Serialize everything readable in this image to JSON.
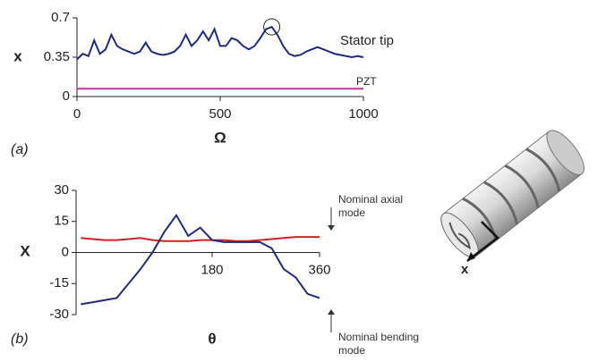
{
  "chart_data": [
    {
      "type": "line",
      "panel_label": "(a)",
      "x_label": "Ω",
      "y_label": "x",
      "xlim": [
        0,
        1000
      ],
      "xticks": [
        0,
        500,
        1000
      ],
      "ylim": [
        0,
        0.7
      ],
      "yticks": [
        0,
        0.35,
        0.7
      ],
      "x": [
        0,
        20,
        40,
        60,
        80,
        100,
        120,
        140,
        160,
        180,
        200,
        220,
        240,
        260,
        280,
        300,
        320,
        340,
        360,
        380,
        400,
        420,
        440,
        460,
        480,
        500,
        520,
        540,
        560,
        580,
        600,
        620,
        640,
        660,
        680,
        700,
        720,
        740,
        760,
        780,
        800,
        820,
        840,
        860,
        880,
        900,
        920,
        940,
        960,
        980,
        1000
      ],
      "series": [
        {
          "name": "Stator tip",
          "color": "#1f2a7a",
          "values": [
            0.33,
            0.38,
            0.36,
            0.5,
            0.38,
            0.42,
            0.55,
            0.45,
            0.42,
            0.4,
            0.38,
            0.4,
            0.48,
            0.4,
            0.38,
            0.37,
            0.38,
            0.4,
            0.45,
            0.55,
            0.45,
            0.5,
            0.58,
            0.5,
            0.6,
            0.45,
            0.45,
            0.52,
            0.5,
            0.45,
            0.42,
            0.45,
            0.52,
            0.6,
            0.62,
            0.55,
            0.45,
            0.38,
            0.36,
            0.37,
            0.4,
            0.42,
            0.44,
            0.42,
            0.4,
            0.38,
            0.37,
            0.36,
            0.35,
            0.36,
            0.35
          ]
        },
        {
          "name": "PZT",
          "color": "#c0379a",
          "values": [
            0.07,
            0.07,
            0.07,
            0.07,
            0.07,
            0.07,
            0.07,
            0.07,
            0.07,
            0.07,
            0.07,
            0.07,
            0.07,
            0.07,
            0.07,
            0.07,
            0.07,
            0.07,
            0.07,
            0.07,
            0.07,
            0.07,
            0.07,
            0.07,
            0.07,
            0.07,
            0.07,
            0.07,
            0.07,
            0.07,
            0.07,
            0.07,
            0.07,
            0.07,
            0.07,
            0.07,
            0.07,
            0.07,
            0.07,
            0.07,
            0.07,
            0.07,
            0.07,
            0.07,
            0.07,
            0.07,
            0.07,
            0.07,
            0.07,
            0.07,
            0.07
          ]
        }
      ],
      "highlight_index": 34
    },
    {
      "type": "line",
      "panel_label": "(b)",
      "x_label": "θ",
      "y_label": "X",
      "xlim": [
        -48,
        360
      ],
      "xticks": [
        180,
        360
      ],
      "ylim": [
        -30,
        30
      ],
      "yticks": [
        -30,
        -15,
        0,
        15,
        30
      ],
      "x": [
        -40,
        -20,
        0,
        20,
        40,
        60,
        80,
        100,
        120,
        140,
        160,
        180,
        200,
        220,
        240,
        260,
        280,
        300,
        320,
        340,
        360
      ],
      "series": [
        {
          "name": "Nominal axial mode",
          "color": "#d62020",
          "values": [
            7,
            6.5,
            6,
            6,
            6.5,
            7,
            6,
            5.5,
            5.5,
            5.5,
            6,
            6,
            6,
            5.5,
            5.5,
            6,
            6.5,
            7,
            7.5,
            7.5,
            7.5
          ]
        },
        {
          "name": "Nominal bending mode",
          "color": "#1f2a7a",
          "values": [
            -25,
            -24,
            -23,
            -22,
            -15,
            -8,
            0,
            10,
            18,
            8,
            12,
            6,
            5,
            5,
            5,
            5,
            2,
            -8,
            -12,
            -20,
            -22
          ]
        }
      ]
    }
  ],
  "illustration": {
    "axis_label": "x"
  }
}
